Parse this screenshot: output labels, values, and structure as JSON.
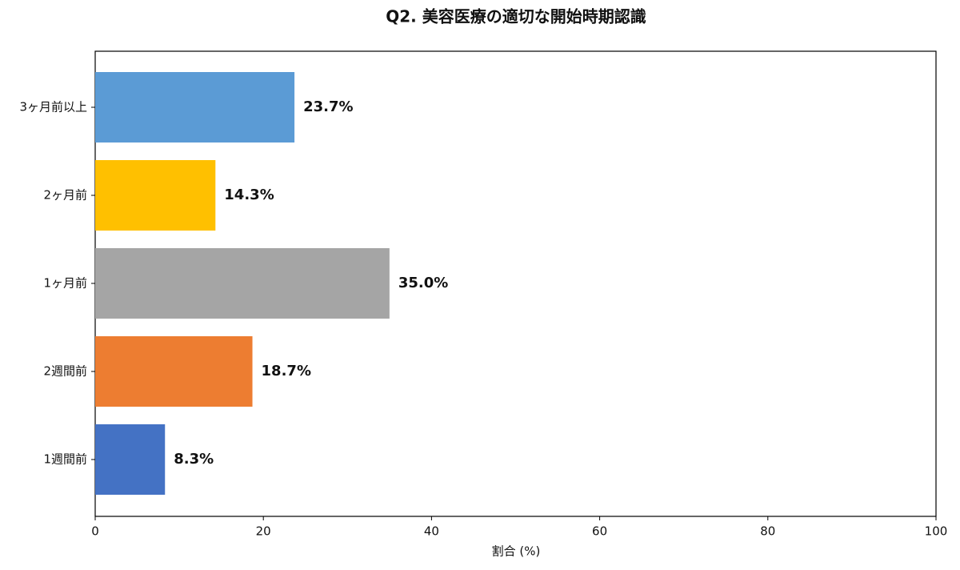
{
  "chart_data": {
    "type": "barh",
    "title": "Q2. 美容医療の適切な開始時期認識",
    "xlabel": "割合 (%)",
    "categories": [
      "3ヶ月前以上",
      "2ヶ月前",
      "1ヶ月前",
      "2週間前",
      "1週間前"
    ],
    "values": [
      23.7,
      14.3,
      35.0,
      18.7,
      8.3
    ],
    "value_labels": [
      "23.7%",
      "14.3%",
      "35.0%",
      "18.7%",
      "8.3%"
    ],
    "colors": [
      "#5b9bd5",
      "#ffc000",
      "#a5a5a5",
      "#ed7d31",
      "#4472c4"
    ],
    "xlim": [
      0,
      100
    ],
    "xticks": [
      0,
      20,
      40,
      60,
      80,
      100
    ],
    "grid": false
  }
}
